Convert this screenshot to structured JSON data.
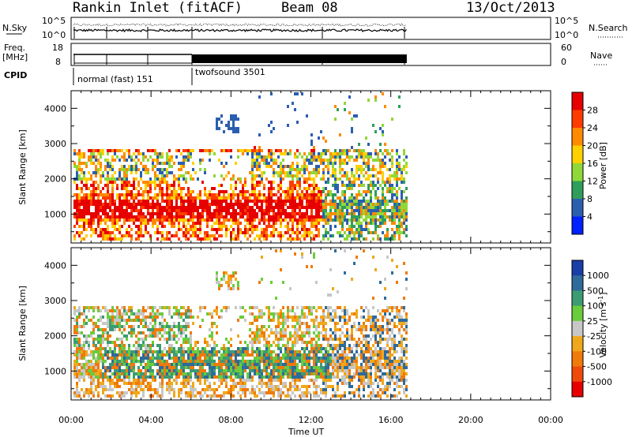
{
  "header": {
    "station": "Rankin Inlet (fitACF)",
    "beam": "Beam 08",
    "date": "13/Oct/2013"
  },
  "strips": {
    "nsky_label": "N.Sky",
    "nsky_ticks": [
      "10^5",
      "10^0"
    ],
    "nsearch_label": "N.Search",
    "nsearch_ticks": [
      "10^5",
      "10^0"
    ],
    "freq_label_1": "Freq.",
    "freq_label_2": "[MHz]",
    "freq_ticks": [
      "18",
      "8"
    ],
    "nave_label": "Nave",
    "nave_ticks": [
      "60",
      "0"
    ],
    "cpid_label": "CPID",
    "cpid_segments": [
      {
        "name": "normal (fast) 151",
        "start_hour": 0.0,
        "end_hour": 6.0
      },
      {
        "name": "twofsound 3501",
        "start_hour": 6.0,
        "end_hour": 16.8
      }
    ]
  },
  "panels": {
    "ylabel": "Slant Range [km]",
    "yticks": [
      "4000",
      "3000",
      "2000",
      "1000"
    ],
    "xticks": [
      "00:00",
      "04:00",
      "08:00",
      "12:00",
      "16:00",
      "20:00",
      "00:00"
    ],
    "xlabel": "Time UT"
  },
  "colorbars": {
    "power": {
      "label": "Power [dB]",
      "ticks": [
        "28",
        "24",
        "20",
        "16",
        "12",
        "8",
        "4"
      ],
      "colors": [
        "#e60000",
        "#ff3c00",
        "#ff8a00",
        "#ffd000",
        "#8fd83a",
        "#2f9e5a",
        "#2a5fb0",
        "#0020ff"
      ]
    },
    "velocity": {
      "label_main": "Velocity",
      "label_unit": "[m s",
      "label_exp": "-1",
      "label_close": "]",
      "ticks": [
        "1000",
        "500",
        "100",
        "25",
        "-25",
        "-100",
        "-500",
        "-1000"
      ],
      "colors": [
        "#1a3ea8",
        "#2e6a9a",
        "#3d9b74",
        "#6acc3c",
        "#c7c7c7",
        "#f0a81a",
        "#f07a0a",
        "#f04a0a",
        "#e60000"
      ]
    }
  },
  "chart_data": {
    "type": "heatmap",
    "title": "Rankin Inlet (fitACF)",
    "subtitle": "Beam 08 — 13/Oct/2013",
    "xlabel": "Time UT",
    "xlim_hours": [
      0,
      24
    ],
    "x_ticks_hours": [
      0,
      4,
      8,
      12,
      16,
      20,
      24
    ],
    "ylabel": "Slant Range [km]",
    "ylim_km": [
      180,
      4500
    ],
    "y_ticks_km": [
      1000,
      2000,
      3000,
      4000
    ],
    "data_end_hour": 16.8,
    "power_scale_db": [
      0,
      30
    ],
    "velocity_scale_ms": [
      -1000,
      1000
    ],
    "panels": [
      "power",
      "velocity"
    ]
  }
}
